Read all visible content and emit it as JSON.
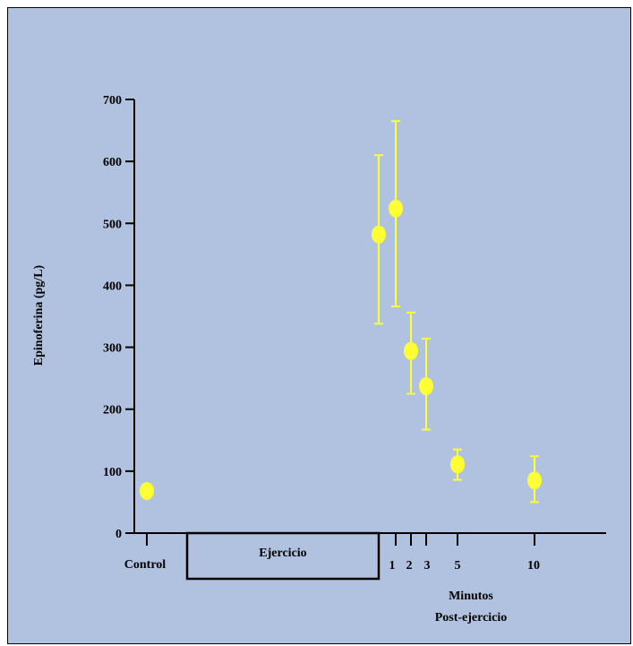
{
  "colors": {
    "background": "#b0c2df",
    "marker": "#ffff33",
    "error_bar": "#ffff33",
    "axis": "#000000"
  },
  "chart_data": {
    "type": "scatter",
    "ylabel": "Epinoferina (pg/L)",
    "xlabel": "Minutos\nPost-ejercicio",
    "ylim": [
      0,
      700
    ],
    "yticks": [
      0,
      100,
      200,
      300,
      400,
      500,
      600,
      700
    ],
    "grid": false,
    "legend": "none",
    "x_categories": [
      "Control",
      "Ejercicio",
      "1",
      "2",
      "3",
      "5",
      "10"
    ],
    "exercise_box_label": "Ejercicio",
    "xaxis_note_lines": [
      "Minutos",
      "Post-ejercicio"
    ],
    "points": [
      {
        "x": "Control",
        "y": 68,
        "err_low": 68,
        "err_high": 68
      },
      {
        "x": "end-of-exercise",
        "y": 482,
        "err_low": 338,
        "err_high": 610
      },
      {
        "x": "1",
        "y": 524,
        "err_low": 366,
        "err_high": 665
      },
      {
        "x": "2",
        "y": 294,
        "err_low": 225,
        "err_high": 356
      },
      {
        "x": "3",
        "y": 237,
        "err_low": 167,
        "err_high": 314
      },
      {
        "x": "5",
        "y": 111,
        "err_low": 86,
        "err_high": 135
      },
      {
        "x": "10",
        "y": 85,
        "err_low": 50,
        "err_high": 124
      }
    ]
  }
}
